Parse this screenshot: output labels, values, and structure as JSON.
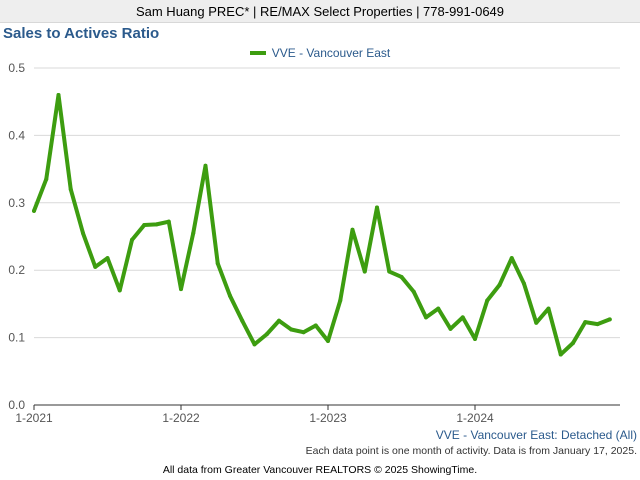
{
  "header": {
    "text": "Sam Huang PREC* | RE/MAX Select Properties | 778-991-0649"
  },
  "colors": {
    "series": "#3d9d10",
    "title": "#2b5a8c",
    "grid": "#d9d9d9",
    "axis": "#555555"
  },
  "chart_data": {
    "type": "line",
    "title": "Sales to Actives Ratio",
    "xlabel": "",
    "ylabel": "",
    "ylim": [
      0,
      0.5
    ],
    "yticks": [
      "0.0",
      "0.1",
      "0.2",
      "0.3",
      "0.4",
      "0.5"
    ],
    "xticks": [
      "1-2021",
      "1-2022",
      "1-2023",
      "1-2024"
    ],
    "grid": true,
    "legend_position": "top-center",
    "series": [
      {
        "name": "VVE - Vancouver East",
        "x": [
          "2021-01",
          "2021-02",
          "2021-03",
          "2021-04",
          "2021-05",
          "2021-06",
          "2021-07",
          "2021-08",
          "2021-09",
          "2021-10",
          "2021-11",
          "2021-12",
          "2022-01",
          "2022-02",
          "2022-03",
          "2022-04",
          "2022-05",
          "2022-06",
          "2022-07",
          "2022-08",
          "2022-09",
          "2022-10",
          "2022-11",
          "2022-12",
          "2023-01",
          "2023-02",
          "2023-03",
          "2023-04",
          "2023-05",
          "2023-06",
          "2023-07",
          "2023-08",
          "2023-09",
          "2023-10",
          "2023-11",
          "2023-12",
          "2024-01",
          "2024-02",
          "2024-03",
          "2024-04",
          "2024-05",
          "2024-06",
          "2024-07",
          "2024-08",
          "2024-09",
          "2024-10",
          "2024-11",
          "2024-12"
        ],
        "values": [
          0.288,
          0.335,
          0.46,
          0.32,
          0.255,
          0.205,
          0.218,
          0.17,
          0.245,
          0.267,
          0.268,
          0.272,
          0.172,
          0.255,
          0.355,
          0.21,
          0.162,
          0.125,
          0.09,
          0.105,
          0.125,
          0.112,
          0.108,
          0.118,
          0.095,
          0.155,
          0.26,
          0.198,
          0.293,
          0.198,
          0.19,
          0.168,
          0.13,
          0.143,
          0.113,
          0.13,
          0.098,
          0.155,
          0.178,
          0.218,
          0.18,
          0.122,
          0.143,
          0.075,
          0.092,
          0.123,
          0.12,
          0.127
        ]
      }
    ]
  },
  "footnote": "VVE - Vancouver East: Detached (All)",
  "note": "Each data point is one month of activity. Data is from January 17, 2025.",
  "source": "All data from Greater Vancouver REALTORS © 2025 ShowingTime."
}
